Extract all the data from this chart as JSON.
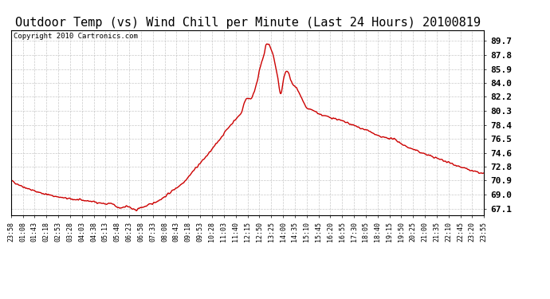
{
  "title": "Outdoor Temp (vs) Wind Chill per Minute (Last 24 Hours) 20100819",
  "copyright": "Copyright 2010 Cartronics.com",
  "background_color": "#ffffff",
  "plot_bg_color": "#ffffff",
  "line_color": "#cc0000",
  "line_width": 1.0,
  "yticks": [
    67.1,
    69.0,
    70.9,
    72.8,
    74.6,
    76.5,
    78.4,
    80.3,
    82.2,
    84.0,
    85.9,
    87.8,
    89.7
  ],
  "ylim": [
    66.2,
    91.2
  ],
  "xtick_labels": [
    "23:58",
    "01:08",
    "01:43",
    "02:18",
    "02:53",
    "03:28",
    "04:03",
    "04:38",
    "05:13",
    "05:48",
    "06:23",
    "06:58",
    "07:33",
    "08:08",
    "08:43",
    "09:18",
    "09:53",
    "10:28",
    "11:03",
    "11:40",
    "12:15",
    "12:50",
    "13:25",
    "14:00",
    "14:35",
    "15:10",
    "15:45",
    "16:20",
    "16:55",
    "17:30",
    "18:05",
    "18:40",
    "19:15",
    "19:50",
    "20:25",
    "21:00",
    "21:35",
    "22:10",
    "22:45",
    "23:20",
    "23:55"
  ],
  "grid_color": "#bbbbbb",
  "grid_style": "--",
  "title_fontsize": 11,
  "copyright_fontsize": 6.5,
  "tick_fontsize": 6,
  "ytick_fontsize": 8
}
